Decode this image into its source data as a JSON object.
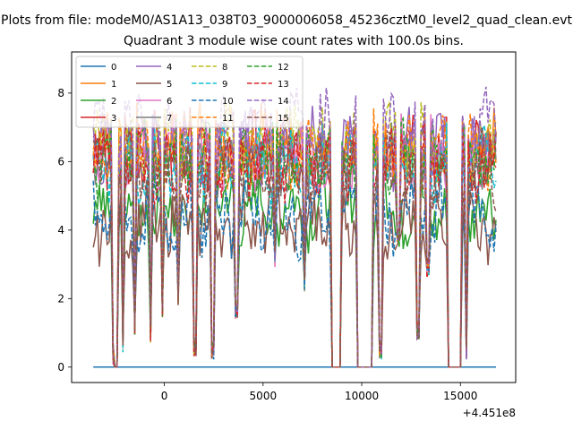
{
  "chart_data": {
    "type": "line",
    "suptitle": "Plots from file: modeM0/AS1A13_038T03_9000006058_45236cztM0_level2_quad_clean.evt",
    "title": "Quadrant 3 module wise count rates with 100.0s bins.",
    "xlabel": "",
    "ylabel": "",
    "x_offset_label": "+4.451e8",
    "xlim": [
      -4700,
      17800
    ],
    "ylim": [
      -0.45,
      9.2
    ],
    "x_ticks": [
      0,
      5000,
      10000,
      15000
    ],
    "y_ticks": [
      0,
      2,
      4,
      6,
      8
    ],
    "x_start": -3600,
    "x_end": 16800,
    "gaps": [
      [
        -2550,
        -2400
      ],
      [
        8500,
        8950
      ],
      [
        9800,
        10550
      ],
      [
        14350,
        15050
      ]
    ],
    "legend": {
      "location": "upper-left",
      "columns": 4
    },
    "series": [
      {
        "name": "0",
        "color": "#1f77b4",
        "style": "solid",
        "level": 0
      },
      {
        "name": "1",
        "color": "#ff7f0e",
        "style": "solid",
        "level": 6.5
      },
      {
        "name": "2",
        "color": "#2ca02c",
        "style": "solid",
        "level": 4.6
      },
      {
        "name": "3",
        "color": "#d62728",
        "style": "solid",
        "level": 6.3
      },
      {
        "name": "4",
        "color": "#9467bd",
        "style": "solid",
        "level": 6.4
      },
      {
        "name": "5",
        "color": "#8c564b",
        "style": "solid",
        "level": 4.2
      },
      {
        "name": "6",
        "color": "#e377c2",
        "style": "solid",
        "level": 6.2
      },
      {
        "name": "7",
        "color": "#7f7f7f",
        "style": "solid",
        "level": 6.0
      },
      {
        "name": "8",
        "color": "#bcbd22",
        "style": "dashed",
        "level": 6.6
      },
      {
        "name": "9",
        "color": "#17becf",
        "style": "dashed",
        "level": 5.9
      },
      {
        "name": "10",
        "color": "#1f77b4",
        "style": "dashed",
        "level": 4.4
      },
      {
        "name": "11",
        "color": "#ff7f0e",
        "style": "dashed",
        "level": 6.3
      },
      {
        "name": "12",
        "color": "#2ca02c",
        "style": "dashed",
        "level": 6.1
      },
      {
        "name": "13",
        "color": "#d62728",
        "style": "dashed",
        "level": 6.0
      },
      {
        "name": "14",
        "color": "#9467bd",
        "style": "dashed",
        "level": 7.0
      },
      {
        "name": "15",
        "color": "#8c564b",
        "style": "dashed",
        "level": 5.7
      }
    ]
  }
}
